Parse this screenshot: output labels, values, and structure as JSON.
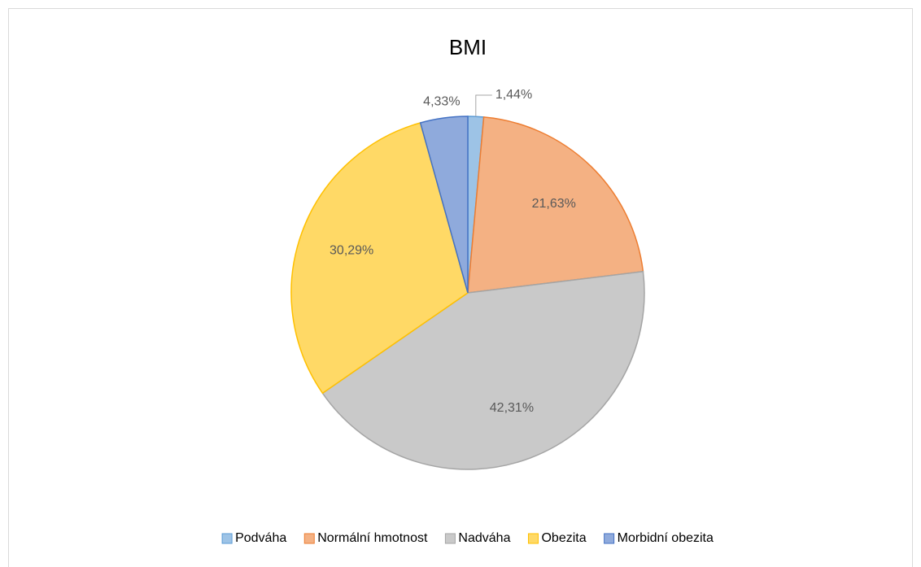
{
  "chart_data": {
    "type": "pie",
    "title": "BMI",
    "categories": [
      "Podváha",
      "Normální hmotnost",
      "Nadváha",
      "Obezita",
      "Morbidní obezita"
    ],
    "values": [
      1.44,
      21.63,
      42.31,
      30.29,
      4.33
    ],
    "value_labels": [
      "1,44%",
      "21,63%",
      "42,31%",
      "30,29%",
      "4,33%"
    ],
    "colors": [
      "#9dc3e6",
      "#f4b183",
      "#c9c9c9",
      "#ffd966",
      "#8faadc"
    ],
    "edge_colors": [
      "#5b9bd5",
      "#ed7d31",
      "#a5a5a5",
      "#ffc000",
      "#4472c4"
    ],
    "legend": "bottom"
  }
}
